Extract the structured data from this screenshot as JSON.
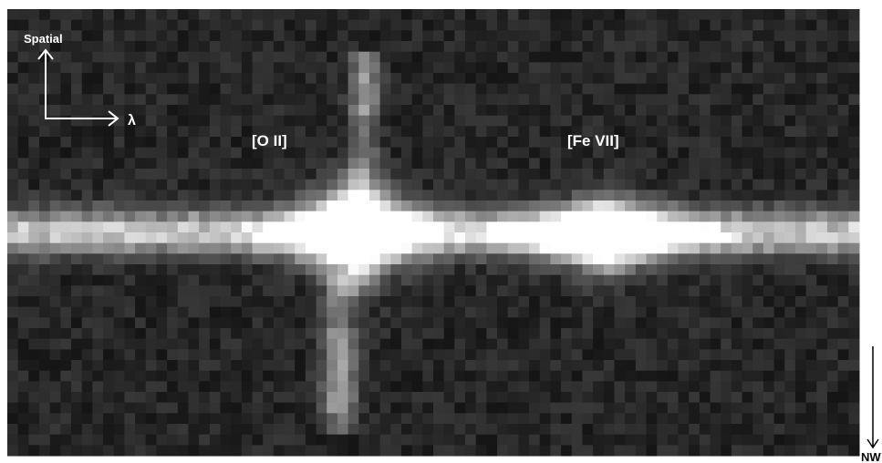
{
  "labels": {
    "spatial": "Spatial",
    "lambda": "λ",
    "line_1": "[O II]",
    "line_2": "[Fe VII]",
    "orientation": "NW"
  }
}
